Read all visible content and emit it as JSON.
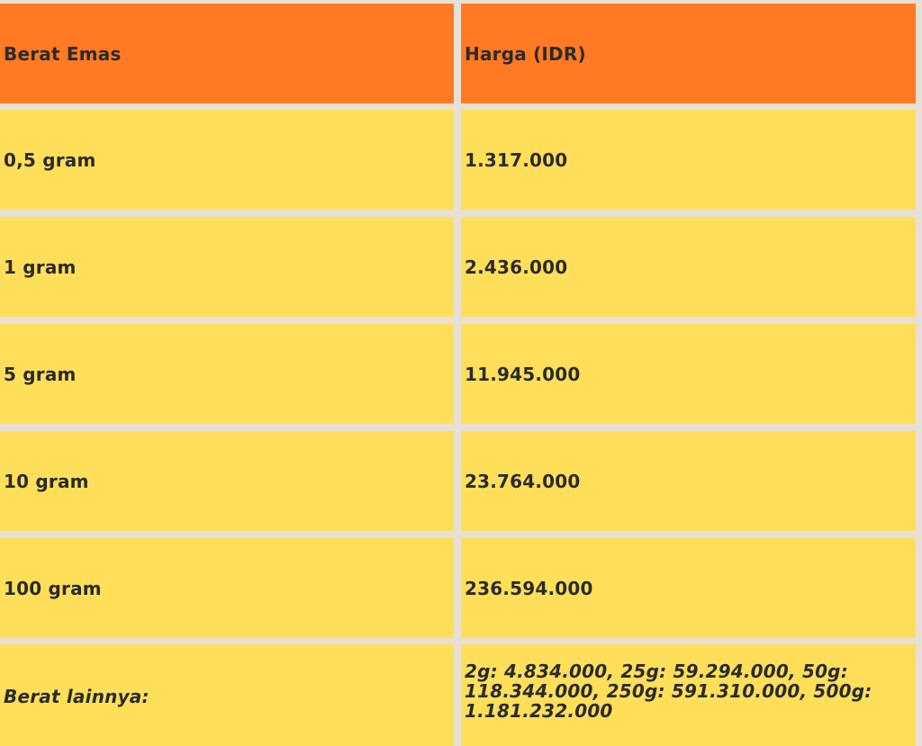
{
  "header": {
    "col1": "Berat Emas",
    "col2": "Harga (IDR)"
  },
  "rows": [
    {
      "weight": "0,5 gram",
      "price": "1.317.000"
    },
    {
      "weight": "1 gram",
      "price": "2.436.000"
    },
    {
      "weight": "5 gram",
      "price": "11.945.000"
    },
    {
      "weight": "10 gram",
      "price": "23.764.000"
    },
    {
      "weight": "100 gram",
      "price": "236.594.000"
    }
  ],
  "other": {
    "label": "Berat lainnya:",
    "line1": "2g: 4.834.000, 25g: 59.294.000, 50g:",
    "line2": "118.344.000, 250g: 591.310.000, 500g:",
    "line3": "1.181.232.000"
  },
  "colors": {
    "header": "#ff7a22",
    "body": "#ffdf5a",
    "grid": "#e8e0d4"
  }
}
